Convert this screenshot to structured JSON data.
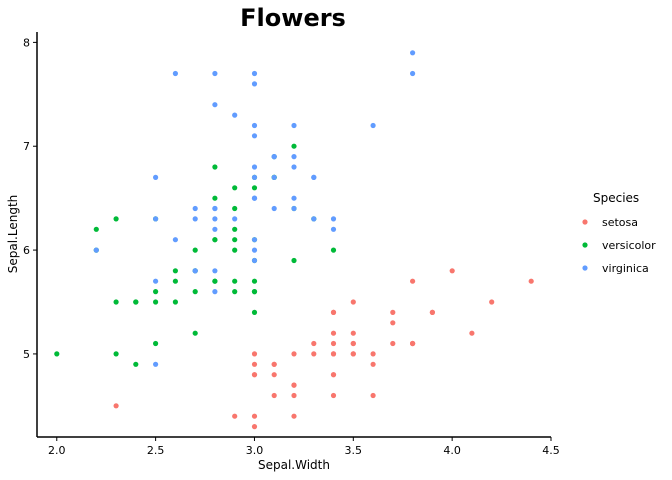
{
  "chart_data": {
    "type": "scatter",
    "title": "Flowers",
    "xlabel": "Sepal.Width",
    "ylabel": "Sepal.Length",
    "xlim": [
      1.9,
      4.5
    ],
    "ylim": [
      4.2,
      8.1
    ],
    "xticks": [
      2.0,
      2.5,
      3.0,
      3.5,
      4.0,
      4.5
    ],
    "xtick_labels": [
      "2.0",
      "2.5",
      "3.0",
      "3.5",
      "4.0",
      "4.5"
    ],
    "yticks": [
      5,
      6,
      7,
      8
    ],
    "ytick_labels": [
      "5",
      "6",
      "7",
      "8"
    ],
    "grid": false,
    "legend": {
      "title": "Species",
      "position": "right"
    },
    "series": [
      {
        "name": "setosa",
        "color": "#F8766D",
        "x": [
          3.5,
          3.0,
          3.2,
          3.1,
          3.6,
          3.9,
          3.4,
          3.4,
          2.9,
          3.1,
          3.7,
          3.4,
          3.0,
          3.0,
          4.0,
          4.4,
          3.9,
          3.5,
          3.8,
          3.8,
          3.4,
          3.7,
          3.6,
          3.3,
          3.4,
          3.0,
          3.4,
          3.5,
          3.4,
          3.2,
          3.1,
          3.4,
          4.1,
          4.2,
          3.1,
          3.2,
          3.5,
          3.6,
          3.0,
          3.4,
          3.5,
          2.3,
          3.2,
          3.5,
          3.8,
          3.0,
          3.8,
          3.2,
          3.7,
          3.3
        ],
        "y": [
          5.1,
          4.9,
          4.7,
          4.6,
          5.0,
          5.4,
          4.6,
          5.0,
          4.4,
          4.9,
          5.4,
          4.8,
          4.8,
          4.3,
          5.8,
          5.7,
          5.4,
          5.1,
          5.7,
          5.1,
          5.4,
          5.1,
          4.6,
          5.1,
          4.8,
          5.0,
          5.0,
          5.2,
          5.2,
          4.7,
          4.8,
          5.4,
          5.2,
          5.5,
          4.9,
          5.0,
          5.5,
          4.9,
          4.4,
          5.1,
          5.0,
          4.5,
          4.4,
          5.0,
          5.1,
          4.8,
          5.1,
          4.6,
          5.3,
          5.0
        ]
      },
      {
        "name": "versicolor",
        "color": "#00BA38",
        "x": [
          3.2,
          3.2,
          3.1,
          2.3,
          2.8,
          2.8,
          3.3,
          2.4,
          2.9,
          2.7,
          2.0,
          3.0,
          2.2,
          2.9,
          2.9,
          3.1,
          3.0,
          2.7,
          2.2,
          2.5,
          3.2,
          2.8,
          2.5,
          2.8,
          2.9,
          3.0,
          2.8,
          3.0,
          2.9,
          2.6,
          2.4,
          2.4,
          2.7,
          2.7,
          3.0,
          3.4,
          3.1,
          2.3,
          3.0,
          2.5,
          2.6,
          3.0,
          2.6,
          2.3,
          2.7,
          3.0,
          2.9,
          2.9,
          2.5,
          2.8
        ],
        "y": [
          7.0,
          6.4,
          6.9,
          5.5,
          6.5,
          5.7,
          6.3,
          4.9,
          6.6,
          5.2,
          5.0,
          5.9,
          6.0,
          6.1,
          5.6,
          6.7,
          5.6,
          5.8,
          6.2,
          5.6,
          5.9,
          6.1,
          6.3,
          6.1,
          6.4,
          6.6,
          6.8,
          6.7,
          6.0,
          5.7,
          5.5,
          5.5,
          5.8,
          6.0,
          5.4,
          6.0,
          6.7,
          6.3,
          5.6,
          5.5,
          5.5,
          6.1,
          5.8,
          5.0,
          5.6,
          5.7,
          5.7,
          6.2,
          5.1,
          5.7
        ]
      },
      {
        "name": "virginica",
        "color": "#619CFF",
        "x": [
          3.3,
          2.7,
          3.0,
          2.9,
          3.0,
          3.0,
          2.5,
          2.9,
          2.5,
          3.6,
          3.2,
          2.7,
          3.0,
          2.5,
          2.8,
          3.2,
          3.0,
          3.8,
          2.6,
          2.2,
          3.2,
          2.8,
          2.8,
          2.7,
          3.3,
          3.2,
          2.8,
          3.0,
          2.8,
          3.0,
          2.8,
          3.8,
          2.8,
          2.8,
          2.6,
          3.0,
          3.4,
          3.1,
          3.0,
          3.1,
          3.1,
          3.1,
          2.7,
          3.2,
          3.3,
          3.0,
          2.5,
          3.0,
          3.4,
          3.0
        ],
        "y": [
          6.3,
          5.8,
          7.1,
          6.3,
          6.5,
          7.6,
          4.9,
          7.3,
          6.7,
          7.2,
          6.5,
          6.4,
          6.8,
          5.7,
          5.8,
          6.4,
          6.5,
          7.7,
          7.7,
          6.0,
          6.9,
          5.6,
          7.7,
          6.3,
          6.7,
          7.2,
          6.2,
          6.1,
          6.4,
          7.2,
          7.4,
          7.9,
          6.4,
          6.3,
          6.1,
          7.7,
          6.3,
          6.4,
          6.0,
          6.9,
          6.7,
          6.9,
          5.8,
          6.8,
          6.7,
          6.7,
          6.3,
          6.5,
          6.2,
          5.9
        ]
      }
    ]
  }
}
